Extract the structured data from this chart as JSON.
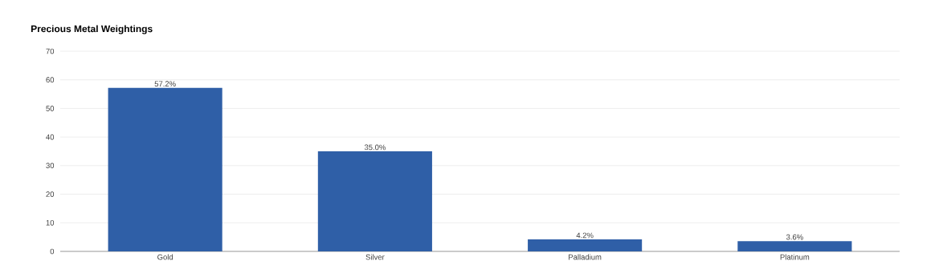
{
  "chart_data": {
    "type": "bar",
    "title": "Precious Metal Weightings",
    "categories": [
      "Gold",
      "Silver",
      "Palladium",
      "Platinum"
    ],
    "values": [
      57.2,
      35.0,
      4.2,
      3.6
    ],
    "value_labels": [
      "57.2%",
      "35.0%",
      "4.2%",
      "3.6%"
    ],
    "color": "#2f5fa7",
    "ylim": [
      0,
      70
    ],
    "yticks": [
      0,
      10,
      20,
      30,
      40,
      50,
      60,
      70
    ],
    "grid": "y"
  }
}
